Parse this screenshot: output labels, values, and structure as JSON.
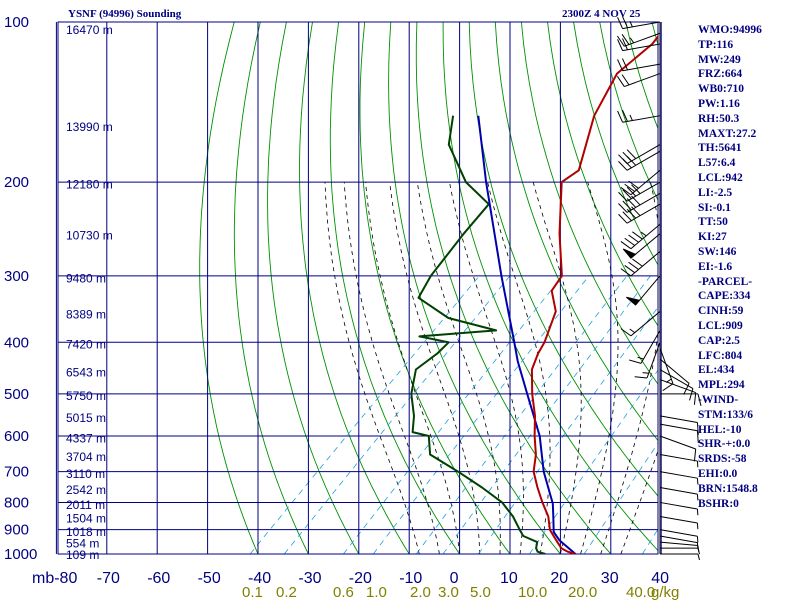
{
  "header": {
    "station": "YSNF (94996) Sounding",
    "time": "2300Z  4 NOV 25"
  },
  "indices": [
    "WMO:94996",
    "TP:116",
    "MW:249",
    "FRZ:664",
    "WB0:710",
    "PW:1.16",
    "RH:50.3",
    "MAXT:27.2",
    "TH:5641",
    "L57:6.4",
    "LCL:942",
    "LI:-2.5",
    "SI:-0.1",
    "TT:50",
    "KI:27",
    "SW:146",
    "EI:-1.6",
    "-PARCEL-",
    "CAPE:334",
    "CINH:59",
    "LCL:909",
    "CAP:2.5",
    "LFC:804",
    "EL:434",
    "MPL:294",
    "-WIND-",
    "STM:133/6",
    "HEL:-10",
    "SHR-+:0.0",
    "SRDS:-58",
    "EHI:0.0",
    "BRN:1548.8",
    "BSHR:0"
  ],
  "colors": {
    "axes": "#000080",
    "temperature": "#b00000",
    "dewpoint": "#004000",
    "parcel": "#0000b0",
    "dry_adiabat": "#009000",
    "moist_adiabat": "#000000",
    "mixing_ratio": "#20a0e0",
    "mixing_label": "#808000"
  },
  "chart_data": {
    "type": "skew-t",
    "title": "YSNF (94996) Sounding",
    "y_axis": {
      "unit": "mb",
      "log_scale": true,
      "range": [
        1000,
        100
      ],
      "ticks": [
        100,
        200,
        300,
        400,
        500,
        600,
        700,
        800,
        900,
        1000
      ]
    },
    "x_axis": {
      "unit": "°C",
      "range": [
        -80,
        40
      ],
      "skewed": true,
      "ticks": [
        -80,
        -70,
        -60,
        -50,
        -40,
        -30,
        -20,
        -10,
        0,
        10,
        20,
        30,
        40
      ]
    },
    "first_x_tick_text": "mb-80",
    "mixing_ratio_labels": [
      "0.1",
      "0.2",
      "0.6",
      "1.0",
      "2.0",
      "3.0",
      "5.0",
      "10.0",
      "20.0",
      "40.0",
      "g/kg"
    ],
    "height_labels": [
      {
        "p": 103,
        "text": "16470 m"
      },
      {
        "p": 157,
        "text": "13990 m"
      },
      {
        "p": 201,
        "text": "12180 m"
      },
      {
        "p": 251,
        "text": "10730 m"
      },
      {
        "p": 302,
        "text": "9480 m"
      },
      {
        "p": 353,
        "text": "8389 m"
      },
      {
        "p": 402,
        "text": "7420 m"
      },
      {
        "p": 454,
        "text": "6543 m"
      },
      {
        "p": 503,
        "text": "5750 m"
      },
      {
        "p": 553,
        "text": "5015 m"
      },
      {
        "p": 604,
        "text": "4337 m"
      },
      {
        "p": 654,
        "text": "3704 m"
      },
      {
        "p": 704,
        "text": "3110 m"
      },
      {
        "p": 754,
        "text": "2542 m"
      },
      {
        "p": 806,
        "text": "2011 m"
      },
      {
        "p": 853,
        "text": "1504 m"
      },
      {
        "p": 906,
        "text": "1018 m"
      },
      {
        "p": 951,
        "text": "554 m"
      },
      {
        "p": 1000,
        "text": "109 m"
      }
    ],
    "temperature": [
      [
        1000,
        23
      ],
      [
        990,
        21
      ],
      [
        975,
        19
      ],
      [
        950,
        17
      ],
      [
        925,
        15
      ],
      [
        900,
        13
      ],
      [
        850,
        10
      ],
      [
        800,
        6
      ],
      [
        750,
        2
      ],
      [
        700,
        -2
      ],
      [
        650,
        -5
      ],
      [
        600,
        -9
      ],
      [
        550,
        -13
      ],
      [
        500,
        -18
      ],
      [
        450,
        -23
      ],
      [
        420,
        -25
      ],
      [
        400,
        -26
      ],
      [
        350,
        -30
      ],
      [
        320,
        -35
      ],
      [
        300,
        -36
      ],
      [
        250,
        -45
      ],
      [
        200,
        -55
      ],
      [
        190,
        -54
      ],
      [
        150,
        -62
      ],
      [
        125,
        -66
      ],
      [
        110,
        -65
      ],
      [
        100,
        -66
      ]
    ],
    "dewpoint": [
      [
        1000,
        17
      ],
      [
        990,
        15
      ],
      [
        975,
        14
      ],
      [
        950,
        13
      ],
      [
        925,
        9
      ],
      [
        900,
        7
      ],
      [
        850,
        3
      ],
      [
        800,
        -2
      ],
      [
        750,
        -9
      ],
      [
        700,
        -17
      ],
      [
        650,
        -26
      ],
      [
        600,
        -30
      ],
      [
        590,
        -34
      ],
      [
        550,
        -37
      ],
      [
        500,
        -42
      ],
      [
        450,
        -46
      ],
      [
        420,
        -45
      ],
      [
        400,
        -45
      ],
      [
        390,
        -52
      ],
      [
        380,
        -38
      ],
      [
        360,
        -50
      ],
      [
        330,
        -60
      ],
      [
        300,
        -62
      ],
      [
        250,
        -64
      ],
      [
        220,
        -65
      ],
      [
        200,
        -74
      ],
      [
        170,
        -85
      ],
      [
        150,
        -90
      ]
    ],
    "parcel": [
      [
        1000,
        23
      ],
      [
        942,
        17
      ],
      [
        909,
        14.2
      ],
      [
        850,
        11
      ],
      [
        804,
        8.3
      ],
      [
        700,
        0
      ],
      [
        600,
        -8
      ],
      [
        500,
        -19
      ],
      [
        434,
        -27.5
      ],
      [
        400,
        -32
      ],
      [
        300,
        -48
      ],
      [
        200,
        -70
      ],
      [
        150,
        -85
      ]
    ],
    "wind_barbs": [
      {
        "p": 1000,
        "dir": 90,
        "spd": 5
      },
      {
        "p": 975,
        "dir": 90,
        "spd": 5
      },
      {
        "p": 950,
        "dir": 95,
        "spd": 5
      },
      {
        "p": 925,
        "dir": 100,
        "spd": 5
      },
      {
        "p": 900,
        "dir": 100,
        "spd": 5
      },
      {
        "p": 850,
        "dir": 100,
        "spd": 5
      },
      {
        "p": 800,
        "dir": 100,
        "spd": 5
      },
      {
        "p": 750,
        "dir": 100,
        "spd": 5
      },
      {
        "p": 700,
        "dir": 100,
        "spd": 5
      },
      {
        "p": 650,
        "dir": 100,
        "spd": 5
      },
      {
        "p": 600,
        "dir": 110,
        "spd": 10
      },
      {
        "p": 570,
        "dir": 100,
        "spd": 10
      },
      {
        "p": 550,
        "dir": 100,
        "spd": 10
      },
      {
        "p": 500,
        "dir": 90,
        "spd": 10
      },
      {
        "p": 470,
        "dir": 110,
        "spd": 10
      },
      {
        "p": 450,
        "dir": 120,
        "spd": 10
      },
      {
        "p": 430,
        "dir": 130,
        "spd": 10
      },
      {
        "p": 410,
        "dir": 160,
        "spd": 15
      },
      {
        "p": 400,
        "dir": 200,
        "spd": 15
      },
      {
        "p": 380,
        "dir": 210,
        "spd": 15
      },
      {
        "p": 350,
        "dir": 230,
        "spd": 15
      },
      {
        "p": 300,
        "dir": 220,
        "spd": 50
      },
      {
        "p": 270,
        "dir": 230,
        "spd": 40
      },
      {
        "p": 250,
        "dir": 230,
        "spd": 50
      },
      {
        "p": 240,
        "dir": 230,
        "spd": 45
      },
      {
        "p": 220,
        "dir": 240,
        "spd": 40
      },
      {
        "p": 210,
        "dir": 240,
        "spd": 40
      },
      {
        "p": 200,
        "dir": 240,
        "spd": 40
      },
      {
        "p": 190,
        "dir": 230,
        "spd": 30
      },
      {
        "p": 175,
        "dir": 240,
        "spd": 30
      },
      {
        "p": 170,
        "dir": 240,
        "spd": 30
      },
      {
        "p": 150,
        "dir": 260,
        "spd": 25
      },
      {
        "p": 125,
        "dir": 250,
        "spd": 20
      },
      {
        "p": 120,
        "dir": 260,
        "spd": 20
      },
      {
        "p": 110,
        "dir": 260,
        "spd": 20
      },
      {
        "p": 105,
        "dir": 250,
        "spd": 25
      },
      {
        "p": 100,
        "dir": 260,
        "spd": 25
      }
    ]
  }
}
